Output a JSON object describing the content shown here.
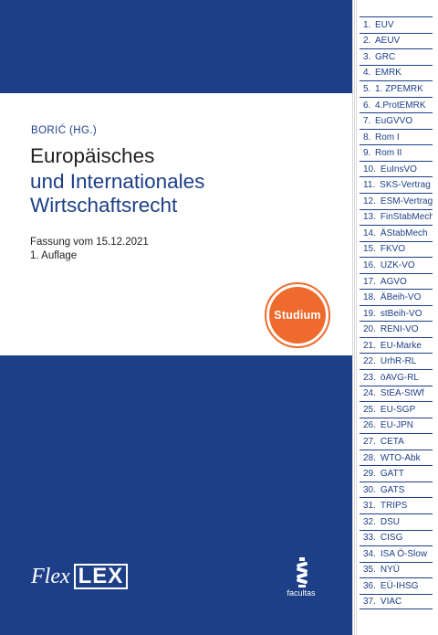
{
  "cover": {
    "editor": "BORIĆ (HG.)",
    "title_line1": "Europäisches",
    "title_line2": "und Internationales",
    "title_line3": "Wirtschaftsrecht",
    "version": "Fassung vom 15.12.2021",
    "edition": "1. Auflage",
    "badge": "Studium",
    "logo_flex": "Flex",
    "logo_lex": "LEX",
    "publisher": "facultas"
  },
  "colors": {
    "navy": "#1d3f87",
    "orange": "#ee6b2d"
  },
  "tabs": [
    {
      "num": "1.",
      "label": "EUV"
    },
    {
      "num": "2.",
      "label": "AEUV"
    },
    {
      "num": "3.",
      "label": "GRC"
    },
    {
      "num": "4.",
      "label": "EMRK"
    },
    {
      "num": "5.",
      "label": "1. ZPEMRK"
    },
    {
      "num": "6.",
      "label": "4.ProtEMRK"
    },
    {
      "num": "7.",
      "label": "EuGVVO"
    },
    {
      "num": "8.",
      "label": "Rom I"
    },
    {
      "num": "9.",
      "label": "Rom II"
    },
    {
      "num": "10.",
      "label": "EuInsVO"
    },
    {
      "num": "11.",
      "label": "SKS-Vertrag"
    },
    {
      "num": "12.",
      "label": "ESM-Vertrag"
    },
    {
      "num": "13.",
      "label": "FinStabMech"
    },
    {
      "num": "14.",
      "label": "ÄStabMech"
    },
    {
      "num": "15.",
      "label": "FKVO"
    },
    {
      "num": "16.",
      "label": "UZK-VO"
    },
    {
      "num": "17.",
      "label": "AGVO"
    },
    {
      "num": "18.",
      "label": "ÄBeih-VO"
    },
    {
      "num": "19.",
      "label": "stBeih-VO"
    },
    {
      "num": "20.",
      "label": "RENI-VO"
    },
    {
      "num": "21.",
      "label": "EU-Marke"
    },
    {
      "num": "22.",
      "label": "UrhR-RL"
    },
    {
      "num": "23.",
      "label": "öAVG-RL"
    },
    {
      "num": "24.",
      "label": "StEA-StWf"
    },
    {
      "num": "25.",
      "label": "EU-SGP"
    },
    {
      "num": "26.",
      "label": "EU-JPN"
    },
    {
      "num": "27.",
      "label": "CETA"
    },
    {
      "num": "28.",
      "label": "WTO-Abk"
    },
    {
      "num": "29.",
      "label": "GATT"
    },
    {
      "num": "30.",
      "label": "GATS"
    },
    {
      "num": "31.",
      "label": "TRIPS"
    },
    {
      "num": "32.",
      "label": "DSU"
    },
    {
      "num": "33.",
      "label": "CISG"
    },
    {
      "num": "34.",
      "label": "ISA Ö-Slow"
    },
    {
      "num": "35.",
      "label": "NYÜ"
    },
    {
      "num": "36.",
      "label": "EÜ-IHSG"
    },
    {
      "num": "37.",
      "label": "VIAC"
    }
  ]
}
